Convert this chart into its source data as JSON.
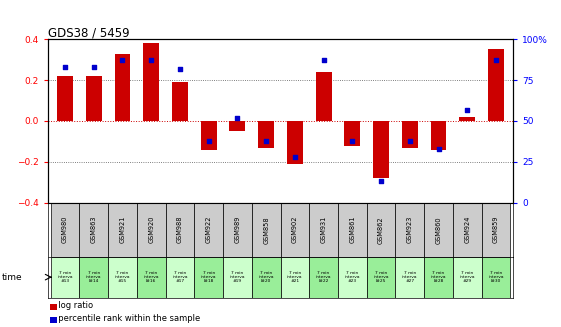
{
  "title": "GDS38 / 5459",
  "samples": [
    "GSM980",
    "GSM863",
    "GSM921",
    "GSM920",
    "GSM988",
    "GSM922",
    "GSM989",
    "GSM858",
    "GSM902",
    "GSM931",
    "GSM861",
    "GSM862",
    "GSM923",
    "GSM860",
    "GSM924",
    "GSM859"
  ],
  "time_labels": [
    "7 min\ninterva\n#13",
    "7 min\ninterva\nl#14",
    "7 min\ninterva\n#15",
    "7 min\ninterva\nl#16",
    "7 min\ninterva\n#17",
    "7 min\ninterva\nl#18",
    "7 min\ninterva\n#19",
    "7 min\ninterva\nl#20",
    "7 min\ninterva\n#21",
    "7 min\ninterva\nl#22",
    "7 min\ninterva\n#23",
    "7 min\ninterva\nl#25",
    "7 min\ninterva\n#27",
    "7 min\ninterva\nl#28",
    "7 min\ninterva\n#29",
    "7 min\ninterva\nl#30"
  ],
  "log_ratio": [
    0.22,
    0.22,
    0.33,
    0.38,
    0.19,
    -0.14,
    -0.05,
    -0.13,
    -0.21,
    0.24,
    -0.12,
    -0.28,
    -0.13,
    -0.14,
    0.02,
    0.35
  ],
  "percentile": [
    83,
    83,
    87,
    87,
    82,
    38,
    52,
    38,
    28,
    87,
    38,
    13,
    38,
    33,
    57,
    87
  ],
  "bar_color": "#cc0000",
  "dot_color": "#0000cc",
  "ylim_left": [
    -0.4,
    0.4
  ],
  "ylim_right": [
    0,
    100
  ],
  "yticks_left": [
    -0.4,
    -0.2,
    0.0,
    0.2,
    0.4
  ],
  "yticks_right": [
    0,
    25,
    50,
    75,
    100
  ],
  "ytick_labels_right": [
    "0",
    "25",
    "50",
    "75",
    "100%"
  ],
  "zero_line_color": "#cc0000",
  "dotted_line_color": "#555555",
  "header_bg": "#cccccc",
  "time_bg_even": "#ccffcc",
  "time_bg_odd": "#99ee99",
  "bar_width": 0.55
}
